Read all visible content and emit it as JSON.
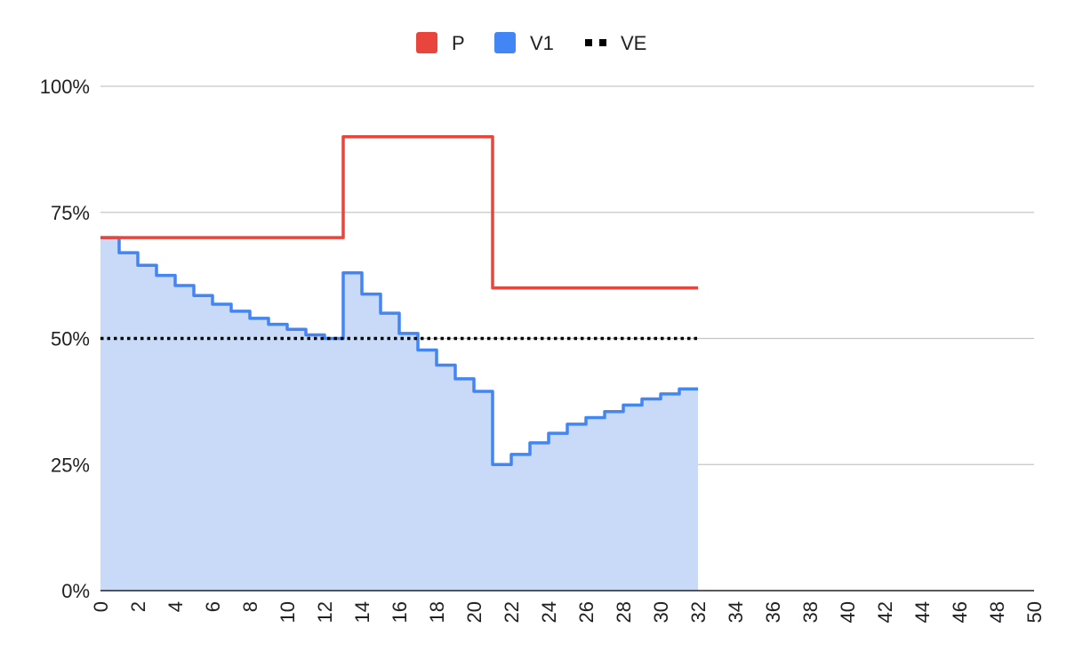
{
  "chart_data": {
    "type": "area",
    "step": true,
    "legend_position": "top",
    "grid": true,
    "title": "",
    "xlabel": "",
    "ylabel": "",
    "x_range": [
      0,
      50
    ],
    "x_ticks": [
      0,
      2,
      4,
      6,
      8,
      10,
      12,
      14,
      16,
      18,
      20,
      22,
      24,
      26,
      28,
      30,
      32,
      34,
      36,
      38,
      40,
      42,
      44,
      46,
      48,
      50
    ],
    "y_range": [
      0,
      100
    ],
    "y_ticks": [
      {
        "value": 0,
        "label": "0%"
      },
      {
        "value": 25,
        "label": "25%"
      },
      {
        "value": 50,
        "label": "50%"
      },
      {
        "value": 75,
        "label": "75%"
      },
      {
        "value": 100,
        "label": "100%"
      }
    ],
    "x_labels_rotated": true,
    "series": [
      {
        "name": "P",
        "color": "#e8453c",
        "style": "step-line",
        "x": [
          0,
          13,
          21,
          32
        ],
        "values": [
          70,
          90,
          60,
          60
        ]
      },
      {
        "name": "V1",
        "color": "#4285f4",
        "fill_color": "#c9daf8",
        "style": "step-area",
        "x": [
          0,
          1,
          2,
          3,
          4,
          5,
          6,
          7,
          8,
          9,
          10,
          11,
          12,
          13,
          14,
          15,
          16,
          17,
          18,
          19,
          20,
          21,
          22,
          23,
          24,
          25,
          26,
          27,
          28,
          29,
          30,
          31,
          32
        ],
        "values": [
          70,
          67,
          64.5,
          62.5,
          60.5,
          58.5,
          56.8,
          55.4,
          54,
          52.8,
          51.8,
          50.7,
          50,
          63,
          58.8,
          55,
          51,
          47.7,
          44.7,
          42,
          39.5,
          25,
          27,
          29.3,
          31.2,
          33,
          34.3,
          35.5,
          36.8,
          38,
          39,
          40,
          40
        ]
      },
      {
        "name": "VE",
        "color": "#000000",
        "style": "dotted-line",
        "x": [
          0,
          32
        ],
        "values": [
          50,
          50
        ]
      }
    ]
  }
}
